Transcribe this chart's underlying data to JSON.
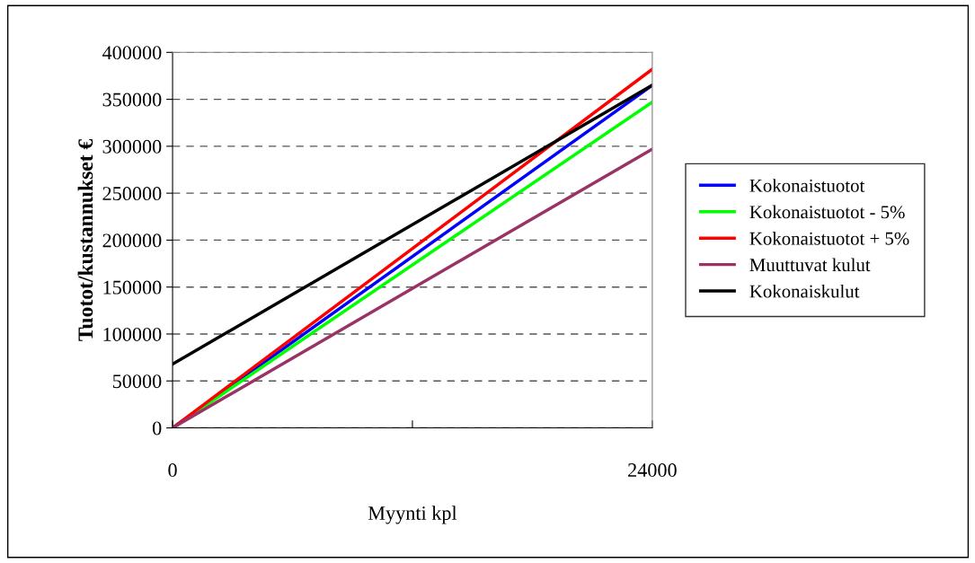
{
  "chart_data": {
    "type": "line",
    "xlabel": "Myynti kpl",
    "ylabel": "Tuotot/kustannukset €",
    "x": [
      0,
      24000
    ],
    "series": [
      {
        "name": "Kokonaistuotot",
        "color": "#0000ff",
        "values": [
          0,
          365000
        ]
      },
      {
        "name": "Kokonaistuotot - 5%",
        "color": "#00ff00",
        "values": [
          0,
          347000
        ]
      },
      {
        "name": "Kokonaistuotot + 5%",
        "color": "#ff0000",
        "values": [
          0,
          382000
        ]
      },
      {
        "name": "Muuttuvat kulut",
        "color": "#993366",
        "values": [
          0,
          297000
        ]
      },
      {
        "name": "Kokonaiskulut",
        "color": "#000000",
        "values": [
          68000,
          365000
        ]
      }
    ],
    "xlim": [
      0,
      24000
    ],
    "xticks": [
      0,
      {
        "value": 12000,
        "label": null
      },
      24000
    ],
    "ylim": [
      0,
      400000
    ],
    "yticks": [
      0,
      50000,
      100000,
      150000,
      200000,
      250000,
      300000,
      350000,
      400000
    ],
    "grid": "y",
    "legend": "right",
    "marker": "none",
    "line_style": "solid"
  }
}
